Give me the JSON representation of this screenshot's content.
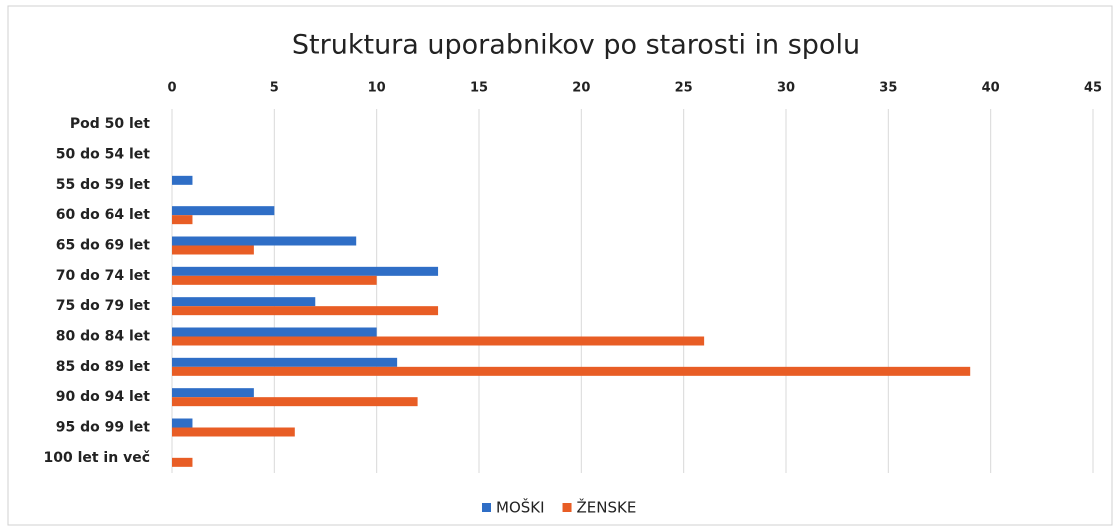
{
  "chart_data": {
    "type": "bar",
    "orientation": "horizontal",
    "title": "Struktura uporabnikov po starosti in spolu",
    "categories": [
      "Pod 50 let",
      "50 do 54 let",
      "55 do 59 let",
      "60 do 64 let",
      "65 do 69 let",
      "70 do 74 let",
      "75 do 79 let",
      "80 do 84 let",
      "85 do 89 let",
      "90 do 94 let",
      "95 do 99 let",
      "100 let in več"
    ],
    "series": [
      {
        "name": "MOŠKI",
        "color": "#2f6ec6",
        "values": [
          0,
          0,
          1,
          5,
          9,
          13,
          7,
          10,
          11,
          4,
          1,
          0
        ]
      },
      {
        "name": "ŽENSKE",
        "color": "#e85d25",
        "values": [
          0,
          0,
          0,
          1,
          4,
          10,
          13,
          26,
          39,
          12,
          6,
          1
        ]
      }
    ],
    "xlim": [
      0,
      45
    ],
    "xticks": [
      0,
      5,
      10,
      15,
      20,
      25,
      30,
      35,
      40,
      45
    ],
    "grid": true,
    "legend": "bottom"
  }
}
